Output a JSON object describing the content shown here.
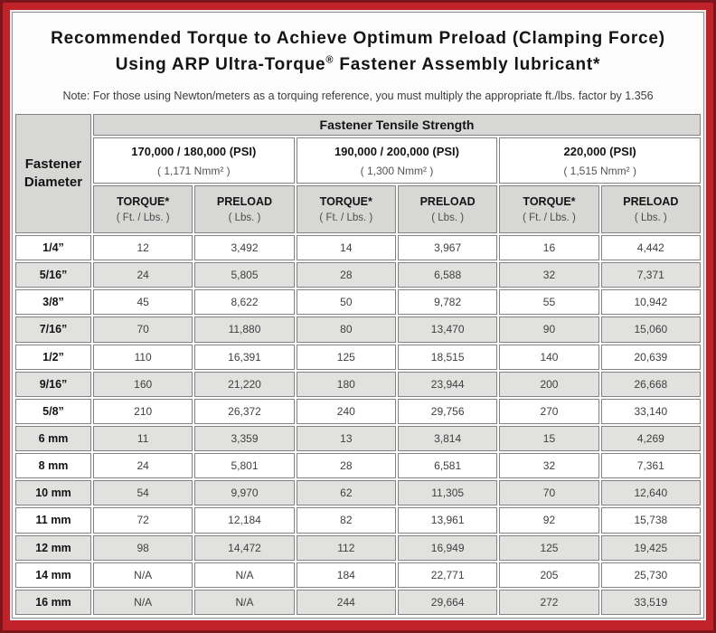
{
  "colors": {
    "frame_red": "#c2222a",
    "frame_dark_edge": "#7c161a",
    "panel_bg": "#fdfdfd",
    "header_gray": "#d7d7d5",
    "shaded_row_gray": "#e1e1df",
    "cell_border_gray": "#828282",
    "text_black": "#141414",
    "text_gray": "#3f3f3f"
  },
  "title": {
    "line1": "Recommended Torque to Achieve Optimum Preload (Clamping Force)",
    "line2_a": "Using ARP Ultra-Torque",
    "line2_sup": "®",
    "line2_b": " Fastener Assembly lubricant*"
  },
  "note": "Note: For those using Newton/meters as a torquing reference, you must multiply the appropriate ft./lbs. factor by 1.356",
  "table": {
    "tensile_header": "Fastener Tensile Strength",
    "diameter_header": "Fastener Diameter",
    "groups": [
      {
        "psi": "170,000 / 180,000 (PSI)",
        "nmm": "( 1,171 Nmm² )"
      },
      {
        "psi": "190,000 / 200,000 (PSI)",
        "nmm": "( 1,300 Nmm² )"
      },
      {
        "psi": "220,000 (PSI)",
        "nmm": "( 1,515 Nmm² )"
      }
    ],
    "col_headers": {
      "torque": "TORQUE*",
      "torque_sub": "( Ft. / Lbs. )",
      "preload": "PRELOAD",
      "preload_sub": "( Lbs. )"
    },
    "rows": [
      {
        "d": "1/4”",
        "v": [
          "12",
          "3,492",
          "14",
          "3,967",
          "16",
          "4,442"
        ]
      },
      {
        "d": "5/16”",
        "v": [
          "24",
          "5,805",
          "28",
          "6,588",
          "32",
          "7,371"
        ]
      },
      {
        "d": "3/8”",
        "v": [
          "45",
          "8,622",
          "50",
          "9,782",
          "55",
          "10,942"
        ]
      },
      {
        "d": "7/16”",
        "v": [
          "70",
          "11,880",
          "80",
          "13,470",
          "90",
          "15,060"
        ]
      },
      {
        "d": "1/2”",
        "v": [
          "110",
          "16,391",
          "125",
          "18,515",
          "140",
          "20,639"
        ]
      },
      {
        "d": "9/16”",
        "v": [
          "160",
          "21,220",
          "180",
          "23,944",
          "200",
          "26,668"
        ]
      },
      {
        "d": "5/8”",
        "v": [
          "210",
          "26,372",
          "240",
          "29,756",
          "270",
          "33,140"
        ]
      },
      {
        "d": "6 mm",
        "v": [
          "11",
          "3,359",
          "13",
          "3,814",
          "15",
          "4,269"
        ]
      },
      {
        "d": "8 mm",
        "v": [
          "24",
          "5,801",
          "28",
          "6,581",
          "32",
          "7,361"
        ]
      },
      {
        "d": "10 mm",
        "v": [
          "54",
          "9,970",
          "62",
          "11,305",
          "70",
          "12,640"
        ]
      },
      {
        "d": "11 mm",
        "v": [
          "72",
          "12,184",
          "82",
          "13,961",
          "92",
          "15,738"
        ]
      },
      {
        "d": "12 mm",
        "v": [
          "98",
          "14,472",
          "112",
          "16,949",
          "125",
          "19,425"
        ]
      },
      {
        "d": "14 mm",
        "v": [
          "N/A",
          "N/A",
          "184",
          "22,771",
          "205",
          "25,730"
        ]
      },
      {
        "d": "16 mm",
        "v": [
          "N/A",
          "N/A",
          "244",
          "29,664",
          "272",
          "33,519"
        ]
      }
    ]
  }
}
